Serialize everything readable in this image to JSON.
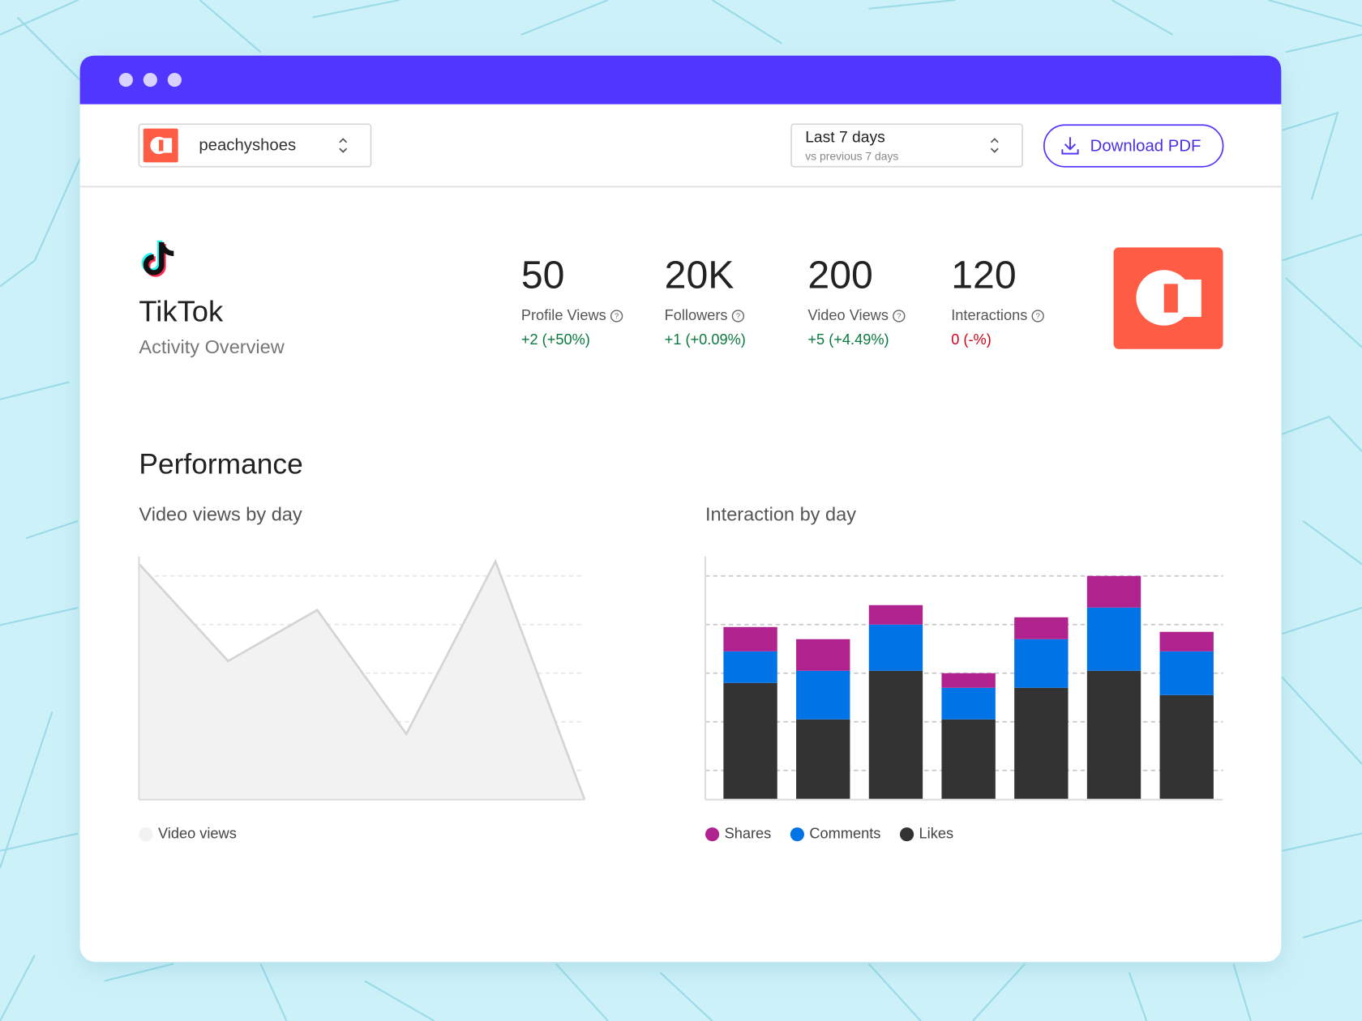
{
  "header": {
    "account": "peachyshoes",
    "period": "Last 7 days",
    "comparison": "vs previous 7 days",
    "button": "Download PDF"
  },
  "platform": {
    "name": "TikTok",
    "subtitle": "Activity Overview"
  },
  "stats": [
    {
      "value": "50",
      "label": "Profile Views",
      "change": "+2 (+50%)",
      "color": "#0a7a3e"
    },
    {
      "value": "20K",
      "label": "Followers",
      "change": "+1 (+0.09%)",
      "color": "#0a7a3e"
    },
    {
      "value": "200",
      "label": "Video Views",
      "change": "+5 (+4.49%)",
      "color": "#0a7a3e"
    },
    {
      "value": "120",
      "label": "Interactions",
      "change": "0 (-%)",
      "color": "#d0021b"
    }
  ],
  "section_title": "Performance",
  "chart_data": [
    {
      "type": "area",
      "title": "Video views by day",
      "categories": [
        null,
        null,
        null,
        null,
        null,
        null
      ],
      "series": [
        {
          "name": "Video views",
          "color": "#f2f2f2",
          "values": [
            97,
            57,
            78,
            27,
            98,
            0
          ]
        }
      ],
      "ylim": [
        0,
        100
      ],
      "yticks": [
        12,
        32,
        52,
        72,
        92
      ],
      "grid": true
    },
    {
      "type": "bar",
      "stacked": true,
      "title": "Interaction by day",
      "categories": [
        null,
        null,
        null,
        null,
        null,
        null,
        null
      ],
      "series": [
        {
          "name": "Shares",
          "color": "#b0238f",
          "values": [
            10,
            13,
            8,
            6,
            9,
            13,
            8
          ]
        },
        {
          "name": "Comments",
          "color": "#0073e6",
          "values": [
            13,
            20,
            19,
            13,
            20,
            26,
            18
          ]
        },
        {
          "name": "Likes",
          "color": "#333333",
          "values": [
            48,
            33,
            53,
            33,
            46,
            53,
            43
          ]
        }
      ],
      "ylim": [
        0,
        100
      ],
      "yticks": [
        12,
        32,
        52,
        72,
        92
      ],
      "grid": true
    }
  ]
}
